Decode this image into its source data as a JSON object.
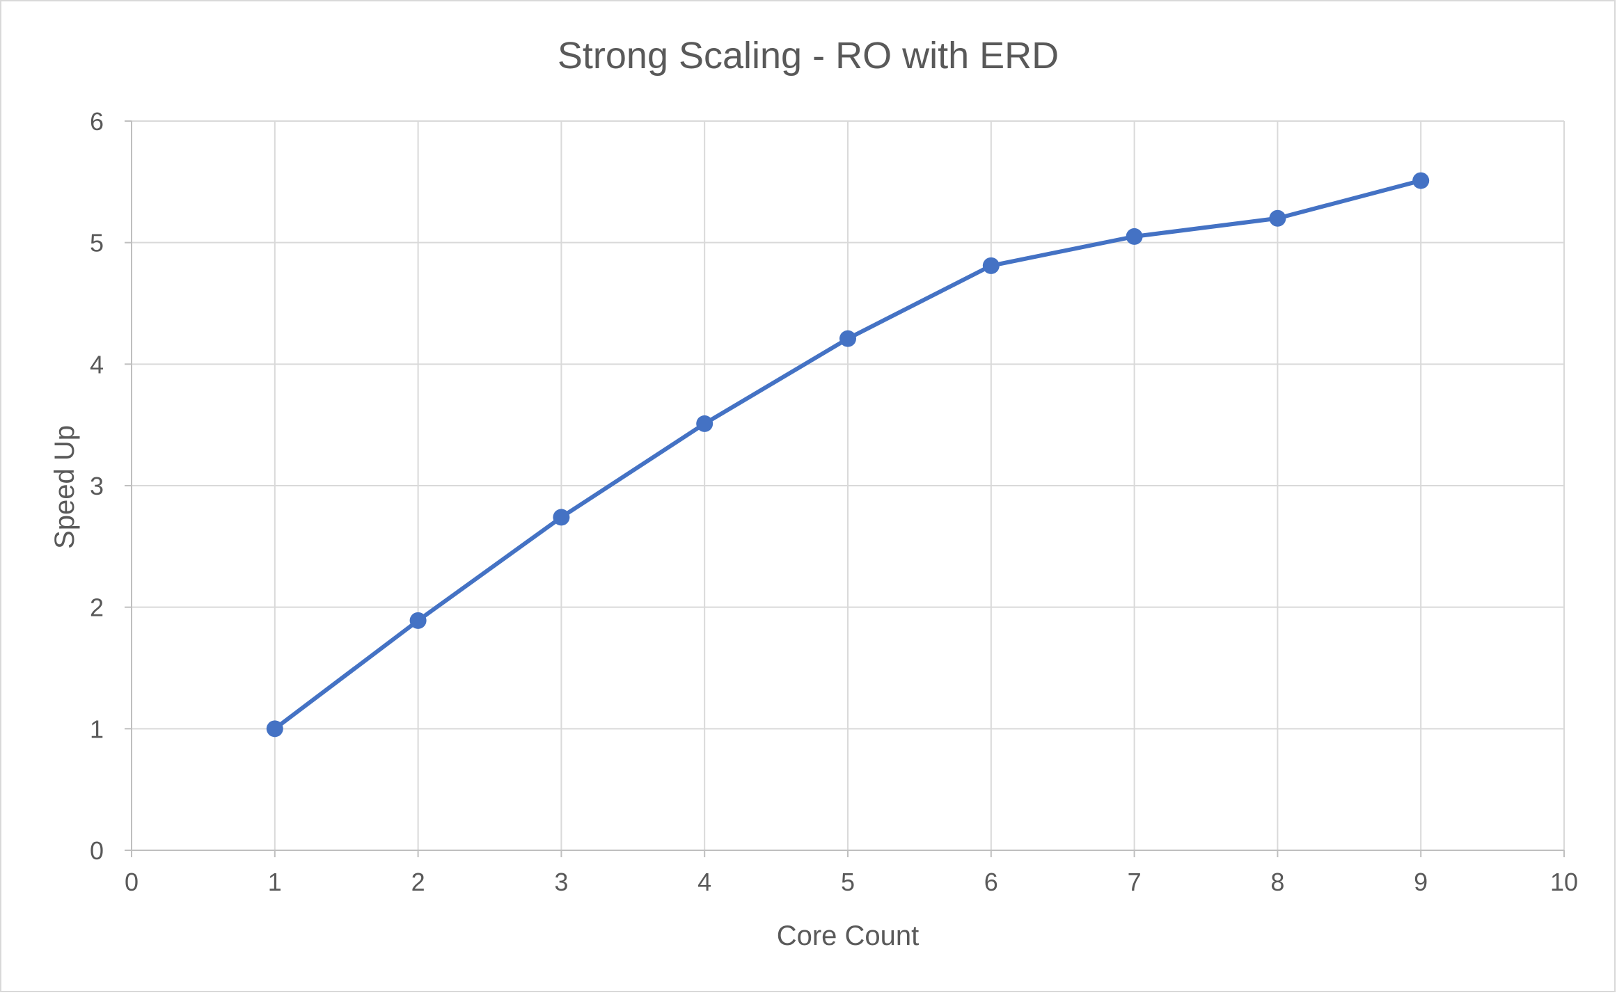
{
  "chart_data": {
    "type": "scatter",
    "title": "Strong Scaling - RO with ERD",
    "xlabel": "Core Count",
    "ylabel": "Speed Up",
    "xlim": [
      0,
      10
    ],
    "ylim": [
      0,
      6
    ],
    "x_ticks": [
      0,
      1,
      2,
      3,
      4,
      5,
      6,
      7,
      8,
      9,
      10
    ],
    "y_ticks": [
      0,
      1,
      2,
      3,
      4,
      5,
      6
    ],
    "grid": true,
    "legend": "none",
    "line_style": "straight lines with markers",
    "series": [
      {
        "color": "#4472c4",
        "points": [
          {
            "x": 1,
            "y": 1.0
          },
          {
            "x": 2,
            "y": 1.89
          },
          {
            "x": 3,
            "y": 2.74
          },
          {
            "x": 4,
            "y": 3.51
          },
          {
            "x": 5,
            "y": 4.21
          },
          {
            "x": 6,
            "y": 4.81
          },
          {
            "x": 7,
            "y": 5.05
          },
          {
            "x": 8,
            "y": 5.2
          },
          {
            "x": 9,
            "y": 5.51
          }
        ]
      }
    ],
    "colors": {
      "gridline": "#d9d9d9",
      "axis_line": "#bfbfbf",
      "text": "#595959",
      "frame": "#d9d9d9"
    }
  }
}
